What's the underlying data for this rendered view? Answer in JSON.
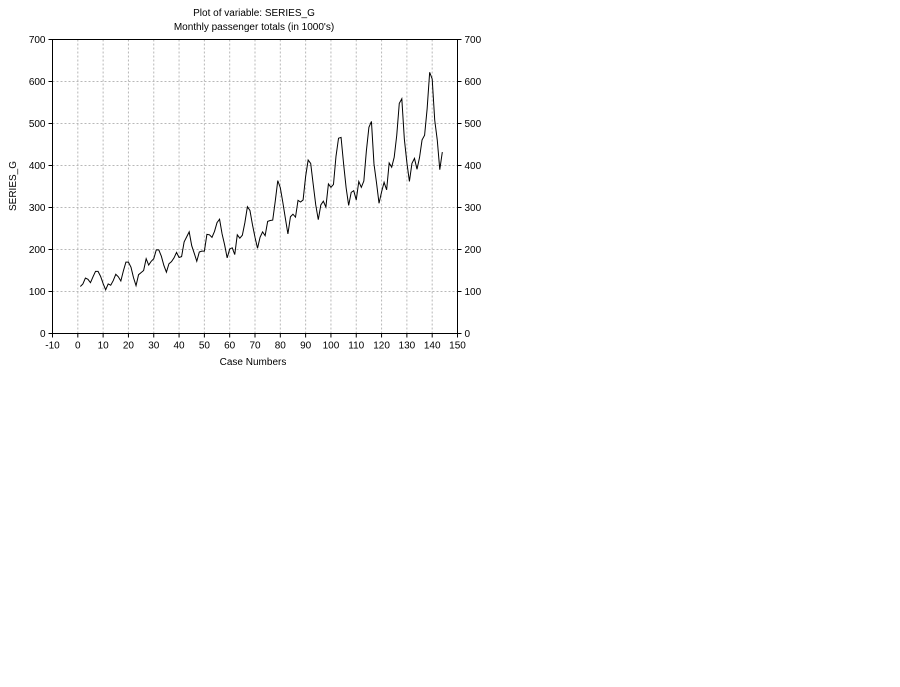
{
  "chart_data": {
    "type": "line",
    "title": "Plot of variable: SERIES_G",
    "subtitle": "Monthly passenger totals (in 1000's)",
    "xlabel": "Case Numbers",
    "ylabel": "SERIES_G",
    "xlim": [
      -10,
      150
    ],
    "ylim": [
      0,
      700
    ],
    "xticks": [
      -10,
      0,
      10,
      20,
      30,
      40,
      50,
      60,
      70,
      80,
      90,
      100,
      110,
      120,
      130,
      140,
      150
    ],
    "yticks": [
      0,
      100,
      200,
      300,
      400,
      500,
      600,
      700
    ],
    "grid": true,
    "series": [
      {
        "values": [
          112,
          118,
          132,
          129,
          121,
          135,
          148,
          148,
          136,
          119,
          104,
          118,
          115,
          126,
          141,
          135,
          125,
          149,
          170,
          170,
          158,
          133,
          114,
          140,
          145,
          150,
          178,
          163,
          172,
          178,
          199,
          199,
          184,
          162,
          146,
          166,
          171,
          180,
          193,
          181,
          183,
          218,
          230,
          242,
          209,
          191,
          172,
          194,
          196,
          196,
          236,
          235,
          229,
          243,
          264,
          272,
          237,
          211,
          180,
          201,
          204,
          188,
          235,
          227,
          234,
          264,
          302,
          293,
          259,
          229,
          203,
          229,
          242,
          233,
          267,
          269,
          270,
          315,
          364,
          347,
          312,
          274,
          237,
          278,
          284,
          277,
          317,
          313,
          318,
          374,
          413,
          405,
          355,
          306,
          271,
          306,
          315,
          301,
          356,
          348,
          355,
          422,
          465,
          467,
          404,
          347,
          305,
          336,
          340,
          318,
          362,
          348,
          363,
          435,
          491,
          505,
          404,
          359,
          310,
          337,
          360,
          342,
          406,
          396,
          420,
          472,
          548,
          559,
          463,
          407,
          362,
          405,
          417,
          391,
          419,
          461,
          472,
          535,
          622,
          606,
          508,
          461,
          390,
          432
        ]
      }
    ]
  }
}
